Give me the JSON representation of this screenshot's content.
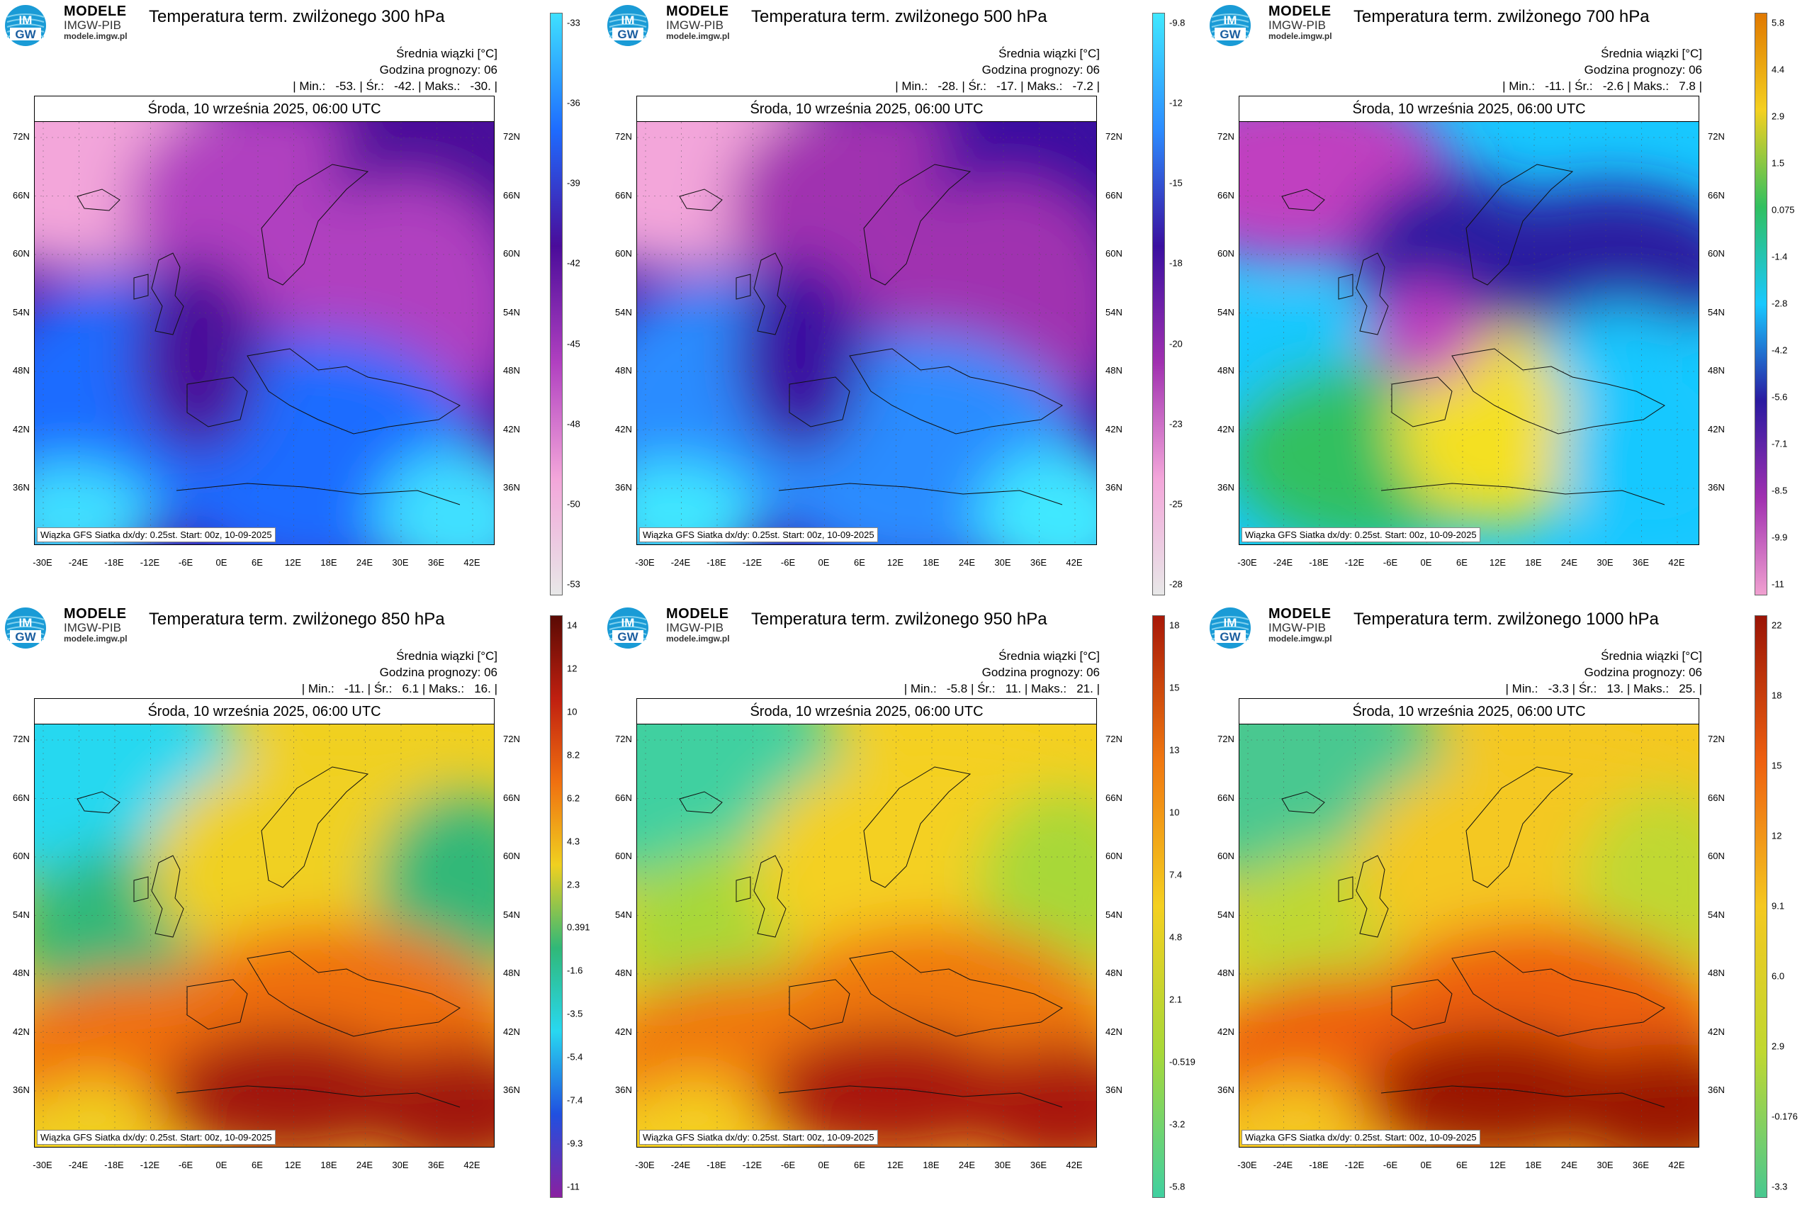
{
  "brand": {
    "line1": "MODELE",
    "line2": "IMGW-PIB",
    "line3": "modele.imgw.pl",
    "logo_text_top": "IM",
    "logo_text_bottom": "GW"
  },
  "date": "Środa, 10 września 2025, 06:00 UTC",
  "legend_title": "Średnia wiązki [°C]",
  "forecast_hour": "Godzina prognozy: 06",
  "footer": "Wiązka GFS Siatka dx/dy: 0.25st. Start: 00z, 10-09-2025",
  "lat_labels": [
    "72N",
    "66N",
    "60N",
    "54N",
    "48N",
    "42N",
    "36N"
  ],
  "lon_labels": [
    "-30E",
    "-24E",
    "-18E",
    "-12E",
    "-6E",
    "0E",
    "6E",
    "12E",
    "18E",
    "24E",
    "30E",
    "36E",
    "42E"
  ],
  "panels": [
    {
      "title": "Temperatura term. zwilżonego 300 hPa",
      "stats": "| Min.:   -53. | Śr.:   -42. | Maks.:   -30. |",
      "colorbar": [
        "-33",
        "-36",
        "-39",
        "-42",
        "-45",
        "-48",
        "-50",
        "-53"
      ],
      "scheme": "cold",
      "colors": [
        "#f3a6da",
        "#b040c0",
        "#4a0c9a",
        "#1e6cff",
        "#3fe0ff"
      ]
    },
    {
      "title": "Temperatura term. zwilżonego 500 hPa",
      "stats": "| Min.:   -28. | Śr.:   -17. | Maks.:   -7.2 |",
      "colorbar": [
        "-9.8",
        "-12",
        "-15",
        "-18",
        "-20",
        "-23",
        "-25",
        "-28"
      ],
      "scheme": "cold",
      "colors": [
        "#f3a6da",
        "#a030b0",
        "#3a10a0",
        "#2c8cff",
        "#40e8ff"
      ]
    },
    {
      "title": "Temperatura term. zwilżonego 700 hPa",
      "stats": "| Min.:   -11. | Śr.:   -2.6 | Maks.:   7.8 |",
      "colorbar": [
        "5.8",
        "4.4",
        "2.9",
        "1.5",
        "0.075",
        "-1.4",
        "-2.8",
        "-4.2",
        "-5.6",
        "-7.1",
        "-8.5",
        "-9.9",
        "-11"
      ],
      "scheme": "mid",
      "colors": [
        "#c040c0",
        "#2a1aa0",
        "#18c8ff",
        "#30c060",
        "#f4e020"
      ]
    },
    {
      "title": "Temperatura term. zwilżonego 850 hPa",
      "stats": "| Min.:   -11. | Śr.:   6.1 | Maks.:   16. |",
      "colorbar": [
        "14",
        "12",
        "10",
        "8.2",
        "6.2",
        "4.3",
        "2.3",
        "0.391",
        "-1.6",
        "-3.5",
        "-5.4",
        "-7.4",
        "-9.3",
        "-11"
      ],
      "scheme": "warm",
      "colors": [
        "#28d8f0",
        "#30b878",
        "#f0d020",
        "#f07010",
        "#a01808"
      ]
    },
    {
      "title": "Temperatura term. zwilżonego 950 hPa",
      "stats": "| Min.:   -5.8 | Śr.:   11. | Maks.:   21. |",
      "colorbar": [
        "18",
        "15",
        "13",
        "10",
        "7.4",
        "4.8",
        "2.1",
        "-0.519",
        "-3.2",
        "-5.8"
      ],
      "scheme": "warm",
      "colors": [
        "#40d0a0",
        "#a8d838",
        "#f4d020",
        "#f07810",
        "#a81808"
      ]
    },
    {
      "title": "Temperatura term. zwilżonego 1000 hPa",
      "stats": "| Min.:   -3.3 | Śr.:   13. | Maks.:   25. |",
      "colorbar": [
        "22",
        "18",
        "15",
        "12",
        "9.1",
        "6.0",
        "2.9",
        "-0.176",
        "-3.3"
      ],
      "scheme": "warm",
      "colors": [
        "#48c890",
        "#c0d830",
        "#f4c820",
        "#ee6010",
        "#9a1406"
      ]
    }
  ]
}
